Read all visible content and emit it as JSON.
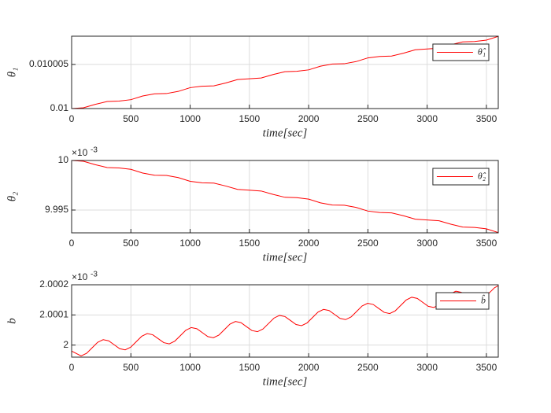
{
  "chart_data": [
    {
      "type": "line",
      "ylabel": "θ₁",
      "xlabel": "time[sec]",
      "x": [
        0,
        100,
        200,
        300,
        400,
        500,
        600,
        700,
        800,
        900,
        1000,
        1100,
        1200,
        1300,
        1400,
        1500,
        1600,
        1700,
        1800,
        1900,
        2000,
        2100,
        2200,
        2300,
        2400,
        2500,
        2600,
        2700,
        2800,
        2900,
        3000,
        3100,
        3200,
        3300,
        3400,
        3500,
        3600
      ],
      "series": [
        {
          "name": "θ̂₁",
          "color": "#ff0000",
          "values": [
            0.01,
            0.0100000907,
            0.010000478,
            0.010000803,
            0.010000845,
            0.010001008,
            0.010001429,
            0.010001675,
            0.0100017,
            0.010001946,
            0.010002367,
            0.01000253,
            0.010002572,
            0.010002897,
            0.010003284,
            0.010003375,
            0.010003466,
            0.010003853,
            0.010004178,
            0.01000422,
            0.010004383,
            0.010004804,
            0.01000505,
            0.010005075,
            0.010005321,
            0.010005742,
            0.010005905,
            0.010005947,
            0.010006272,
            0.010006659,
            0.01000675,
            0.010006841,
            0.010007228,
            0.010007553,
            0.010007595,
            0.010007758,
            0.010008179
          ]
        }
      ],
      "xlim": [
        0,
        3600
      ],
      "xticks": [
        0,
        500,
        1000,
        1500,
        2000,
        2500,
        3000,
        3500
      ],
      "ylim": [
        0.01,
        0.0100082
      ],
      "yticks": [
        0.01,
        0.010005
      ],
      "grid": true,
      "legend": "northeast"
    },
    {
      "type": "line",
      "ylabel": "θ₂",
      "xlabel": "time[sec]",
      "y_exponent": {
        "base": "×10",
        "power": "-3"
      },
      "x": [
        0,
        100,
        200,
        300,
        400,
        500,
        600,
        700,
        800,
        900,
        1000,
        1100,
        1200,
        1300,
        1400,
        1500,
        1600,
        1700,
        1800,
        1900,
        2000,
        2100,
        2200,
        2300,
        2400,
        2500,
        2600,
        2700,
        2800,
        2900,
        3000,
        3100,
        3200,
        3300,
        3400,
        3500,
        3600
      ],
      "series": [
        {
          "name": "θ̂₂",
          "color": "#ff0000",
          "values": [
            10,
            9.99992,
            9.999575,
            9.999286,
            9.999249,
            9.999104,
            9.998729,
            9.998511,
            9.998489,
            9.998271,
            9.997896,
            9.997751,
            9.997714,
            9.997425,
            9.997081,
            9.997,
            9.996919,
            9.996575,
            9.996286,
            9.996249,
            9.996104,
            9.995729,
            9.995511,
            9.995489,
            9.995271,
            9.994896,
            9.994751,
            9.994714,
            9.994425,
            9.994081,
            9.994,
            9.993919,
            9.993575,
            9.993286,
            9.993249,
            9.993104,
            9.992729
          ]
        }
      ],
      "xlim": [
        0,
        3600
      ],
      "xticks": [
        0,
        500,
        1000,
        1500,
        2000,
        2500,
        3000,
        3500
      ],
      "ylim": [
        9.9927,
        10
      ],
      "yticks": [
        9.995,
        10
      ],
      "grid": true,
      "legend": "northeast"
    },
    {
      "type": "line",
      "ylabel": "b",
      "xlabel": "time[sec]",
      "y_exponent": {
        "base": "×10",
        "power": "-3"
      },
      "x": [
        0,
        80,
        126.5,
        173,
        219.5,
        266,
        312.5,
        359,
        405.5,
        452,
        498.5,
        545,
        591.5,
        638,
        684.5,
        731,
        777.5,
        824,
        870.5,
        917,
        963.5,
        1010,
        1056.5,
        1103,
        1149.5,
        1196,
        1242.5,
        1289,
        1335.5,
        1382,
        1428.5,
        1475,
        1521.5,
        1568,
        1614.5,
        1661,
        1707.5,
        1754,
        1800.5,
        1847,
        1893.5,
        1940,
        1986.5,
        2033,
        2079.5,
        2126,
        2172.5,
        2219,
        2265.5,
        2312,
        2358.5,
        2405,
        2451.5,
        2498,
        2544.5,
        2591,
        2637.5,
        2684,
        2730.5,
        2777,
        2823.5,
        2870,
        2916.5,
        2963,
        3009.5,
        3056,
        3102.5,
        3149,
        3195.5,
        3242,
        3288.5,
        3335,
        3381.5,
        3428,
        3474.5,
        3521,
        3567.5,
        3600
      ],
      "series": [
        {
          "name": "b̂",
          "color": "#ff0000",
          "values": [
            1.99998,
            1.999964,
            1.9999729,
            1.999991,
            2.0000091,
            2.000018,
            2.0000142,
            2.0000011,
            1.999988,
            1.9999841,
            1.999993,
            2.0000111,
            2.0000292,
            2.0000381,
            2.0000342,
            2.0000212,
            2.0000081,
            2.0000042,
            2.0000131,
            2.0000312,
            2.0000493,
            2.0000582,
            2.0000543,
            2.0000412,
            2.0000282,
            2.0000243,
            2.0000332,
            2.0000513,
            2.0000694,
            2.0000783,
            2.0000744,
            2.0000613,
            2.0000482,
            2.0000444,
            2.0000533,
            2.0000714,
            2.0000895,
            2.0000984,
            2.0000945,
            2.0000814,
            2.0000683,
            2.0000644,
            2.0000734,
            2.0000915,
            2.0001096,
            2.0001185,
            2.0001146,
            2.0001015,
            2.0000884,
            2.0000845,
            2.0000934,
            2.0001116,
            2.0001297,
            2.0001386,
            2.0001347,
            2.0001216,
            2.0001085,
            2.0001046,
            2.0001135,
            2.0001316,
            2.0001498,
            2.0001587,
            2.0001548,
            2.0001417,
            2.0001286,
            2.0001247,
            2.0001336,
            2.0001517,
            2.0001698,
            2.0001788,
            2.0001749,
            2.0001618,
            2.0001487,
            2.0001448,
            2.0001537,
            2.0001718,
            2.0001899,
            2.000197
          ]
        }
      ],
      "xlim": [
        0,
        3600
      ],
      "xticks": [
        0,
        500,
        1000,
        1500,
        2000,
        2500,
        3000,
        3500
      ],
      "ylim": [
        1.99996,
        2.0002
      ],
      "yticks": [
        2,
        2.0001,
        2.0002
      ],
      "grid": true,
      "legend": "northeast"
    }
  ]
}
